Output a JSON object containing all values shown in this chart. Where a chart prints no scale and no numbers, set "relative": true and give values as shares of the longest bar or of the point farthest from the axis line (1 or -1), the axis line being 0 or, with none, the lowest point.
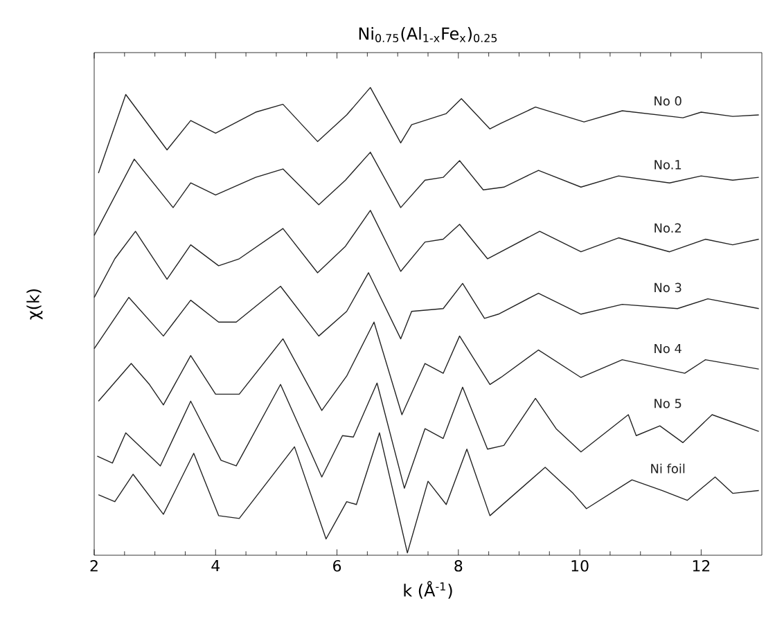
{
  "chart_data": {
    "type": "line",
    "title": "Ni$_{0.75}$(Al$_{1-x}$Fe$_{x}$)$_{0.25}$",
    "xlabel": "k (Å$^{-1}$)",
    "ylabel": "χ(k)",
    "relative": true,
    "xlim": [
      2,
      13
    ],
    "xticks": [
      2,
      4,
      6,
      8,
      10,
      12
    ],
    "tick_labels": "x",
    "marker": "none",
    "line_style": "solid",
    "series": [
      {
        "name": "No 0",
        "color": "#222222",
        "x": [
          2.07,
          2.52,
          3.2,
          3.59,
          4.0,
          4.66,
          5.11,
          5.68,
          6.16,
          6.55,
          7.05,
          7.23,
          7.8,
          8.05,
          8.52,
          8.7,
          9.27,
          10.07,
          10.7,
          11.7,
          12.0,
          12.52,
          12.95
        ],
        "values": [
          0.816,
          0.985,
          0.866,
          0.929,
          0.902,
          0.947,
          0.964,
          0.884,
          0.941,
          1.0,
          0.881,
          0.92,
          0.944,
          0.976,
          0.911,
          0.923,
          0.958,
          0.926,
          0.95,
          0.935,
          0.947,
          0.938,
          0.941
        ]
      },
      {
        "name": "No.1",
        "color": "#222222",
        "x": [
          2.0,
          2.66,
          3.3,
          3.59,
          4.0,
          4.66,
          5.11,
          5.7,
          6.14,
          6.55,
          7.05,
          7.45,
          7.75,
          8.02,
          8.41,
          8.75,
          9.32,
          10.02,
          10.64,
          11.48,
          12.0,
          12.52,
          12.95
        ],
        "values": [
          0.682,
          0.846,
          0.742,
          0.795,
          0.769,
          0.807,
          0.825,
          0.748,
          0.801,
          0.861,
          0.742,
          0.801,
          0.807,
          0.843,
          0.78,
          0.786,
          0.822,
          0.786,
          0.81,
          0.795,
          0.81,
          0.801,
          0.807
        ]
      },
      {
        "name": "No.2",
        "color": "#222222",
        "x": [
          2.0,
          2.34,
          2.68,
          3.2,
          3.59,
          4.05,
          4.39,
          5.11,
          5.68,
          6.14,
          6.55,
          7.05,
          7.45,
          7.75,
          8.02,
          8.48,
          9.34,
          10.02,
          10.64,
          11.48,
          12.07,
          12.52,
          12.95
        ],
        "values": [
          0.549,
          0.632,
          0.691,
          0.588,
          0.662,
          0.617,
          0.632,
          0.697,
          0.602,
          0.659,
          0.736,
          0.605,
          0.668,
          0.674,
          0.706,
          0.632,
          0.691,
          0.647,
          0.677,
          0.647,
          0.674,
          0.662,
          0.674
        ]
      },
      {
        "name": "No 3",
        "color": "#222222",
        "x": [
          2.0,
          2.57,
          3.14,
          3.59,
          4.05,
          4.34,
          5.07,
          5.7,
          6.16,
          6.52,
          7.05,
          7.23,
          7.75,
          8.07,
          8.43,
          8.66,
          9.32,
          10.02,
          10.7,
          11.61,
          12.11,
          12.95
        ],
        "values": [
          0.439,
          0.549,
          0.466,
          0.543,
          0.496,
          0.496,
          0.573,
          0.466,
          0.519,
          0.602,
          0.46,
          0.519,
          0.525,
          0.579,
          0.504,
          0.513,
          0.558,
          0.513,
          0.534,
          0.525,
          0.546,
          0.525
        ]
      },
      {
        "name": "No 4",
        "color": "#222222",
        "x": [
          2.07,
          2.61,
          2.91,
          3.14,
          3.59,
          4.0,
          4.39,
          5.11,
          5.75,
          6.16,
          6.61,
          7.07,
          7.45,
          7.75,
          8.02,
          8.52,
          8.7,
          9.32,
          10.02,
          10.7,
          11.73,
          12.07,
          12.95
        ],
        "values": [
          0.326,
          0.407,
          0.362,
          0.318,
          0.424,
          0.341,
          0.341,
          0.46,
          0.306,
          0.38,
          0.496,
          0.297,
          0.407,
          0.386,
          0.466,
          0.362,
          0.377,
          0.436,
          0.377,
          0.415,
          0.386,
          0.415,
          0.395
        ]
      },
      {
        "name": "No 5",
        "color": "#222222",
        "x": [
          2.05,
          2.3,
          2.52,
          3.09,
          3.59,
          4.09,
          4.34,
          5.07,
          5.75,
          6.09,
          6.27,
          6.66,
          7.11,
          7.45,
          7.75,
          8.07,
          8.48,
          8.75,
          9.27,
          9.61,
          10.02,
          10.8,
          10.93,
          11.32,
          11.7,
          12.18,
          12.95
        ],
        "values": [
          0.208,
          0.193,
          0.258,
          0.187,
          0.326,
          0.199,
          0.187,
          0.362,
          0.163,
          0.252,
          0.249,
          0.365,
          0.139,
          0.267,
          0.246,
          0.356,
          0.223,
          0.231,
          0.332,
          0.267,
          0.217,
          0.297,
          0.252,
          0.273,
          0.237,
          0.297,
          0.261
        ]
      },
      {
        "name": "Ni foil",
        "color": "#222222",
        "x": [
          2.07,
          2.34,
          2.64,
          3.14,
          3.64,
          4.05,
          4.39,
          5.3,
          5.82,
          6.16,
          6.32,
          6.7,
          7.16,
          7.5,
          7.8,
          8.14,
          8.52,
          9.43,
          9.89,
          10.11,
          10.86,
          11.36,
          11.77,
          12.23,
          12.52,
          12.95
        ],
        "values": [
          0.125,
          0.11,
          0.169,
          0.083,
          0.214,
          0.08,
          0.074,
          0.228,
          0.03,
          0.11,
          0.104,
          0.258,
          0.0,
          0.154,
          0.104,
          0.223,
          0.08,
          0.184,
          0.128,
          0.095,
          0.157,
          0.134,
          0.113,
          0.163,
          0.128,
          0.134
        ]
      }
    ]
  }
}
